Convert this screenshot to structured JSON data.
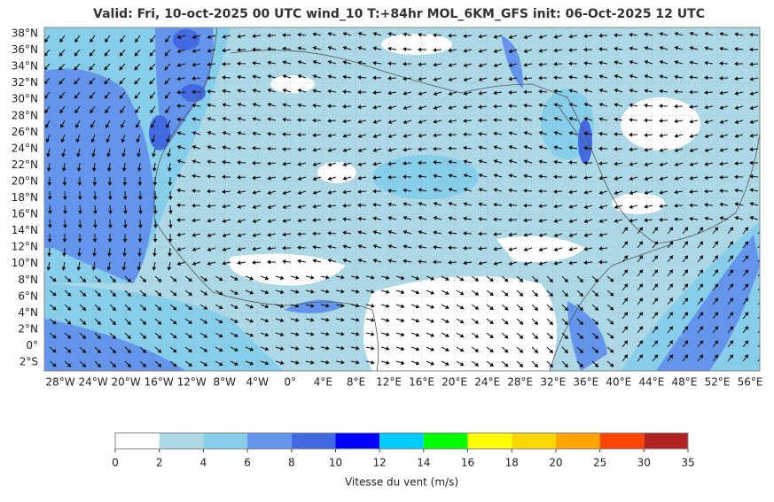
{
  "header": {
    "title": "Valid: Fri, 10-oct-2025   00 UTC   wind_10   T:+84hr   MOL_6KM_GFS   init: 06-Oct-2025    12 UTC"
  },
  "map": {
    "lat_labels": [
      "38°N",
      "36°N",
      "34°N",
      "32°N",
      "30°N",
      "28°N",
      "26°N",
      "24°N",
      "22°N",
      "20°N",
      "18°N",
      "16°N",
      "14°N",
      "12°N",
      "10°N",
      "8°N",
      "6°N",
      "4°N",
      "2°N",
      "0°",
      "2°S"
    ],
    "lon_labels": [
      "28°W",
      "24°W",
      "20°W",
      "16°W",
      "12°W",
      "8°W",
      "4°W",
      "0°",
      "4°E",
      "8°E",
      "12°E",
      "16°E",
      "20°E",
      "24°E",
      "28°E",
      "32°E",
      "36°E",
      "40°E",
      "44°E",
      "48°E",
      "52°E",
      "56°E"
    ]
  },
  "colorbar": {
    "ticks": [
      0,
      2,
      4,
      6,
      8,
      10,
      12,
      14,
      16,
      18,
      20,
      25,
      30,
      35
    ],
    "colors": [
      "#ffffff",
      "#add8e6",
      "#87ceeb",
      "#6495ed",
      "#4169e1",
      "#0000ff",
      "#00ccff",
      "#00ff00",
      "#ffff00",
      "#ffd700",
      "#ffa500",
      "#ff4500",
      "#b22222"
    ],
    "label": "Vitesse du vent (m/s)"
  }
}
